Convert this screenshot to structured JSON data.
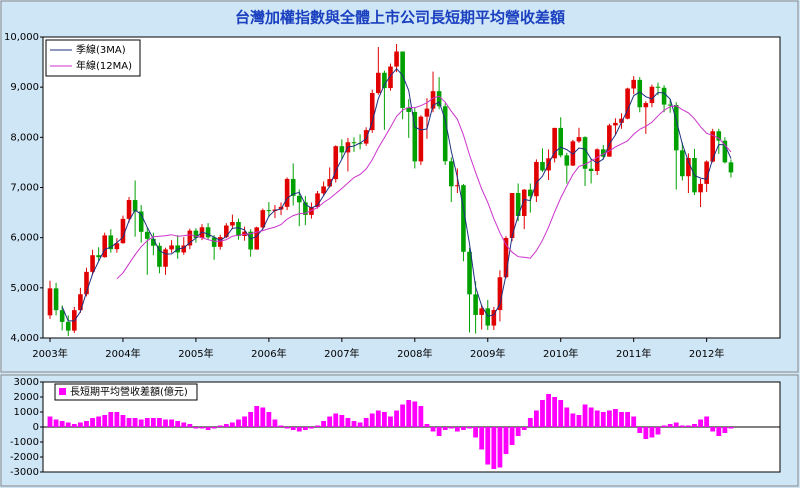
{
  "chart_data": [
    {
      "type": "candlestick",
      "title": "台灣加權指數與全體上市公司長短期平均營收差額",
      "up_color": "#e00000",
      "down_color": "#00a000",
      "categories": [
        "2003年",
        null,
        null,
        null,
        null,
        null,
        null,
        null,
        null,
        null,
        null,
        null,
        "2004年",
        null,
        null,
        null,
        null,
        null,
        null,
        null,
        null,
        null,
        null,
        null,
        "2005年",
        null,
        null,
        null,
        null,
        null,
        null,
        null,
        null,
        null,
        null,
        null,
        "2006年",
        null,
        null,
        null,
        null,
        null,
        null,
        null,
        null,
        null,
        null,
        null,
        "2007年",
        null,
        null,
        null,
        null,
        null,
        null,
        null,
        null,
        null,
        null,
        null,
        "2008年",
        null,
        null,
        null,
        null,
        null,
        null,
        null,
        null,
        null,
        null,
        null,
        "2009年",
        null,
        null,
        null,
        null,
        null,
        null,
        null,
        null,
        null,
        null,
        null,
        "2010年",
        null,
        null,
        null,
        null,
        null,
        null,
        null,
        null,
        null,
        null,
        null,
        "2011年",
        null,
        null,
        null,
        null,
        null,
        null,
        null,
        null,
        null,
        null,
        null,
        "2012年",
        null,
        null,
        null,
        null
      ],
      "open": [
        4452,
        4990,
        4555,
        4321,
        4148,
        4555,
        4872,
        5318,
        5650,
        5611,
        6045,
        5771,
        5890,
        6375,
        6750,
        6522,
        6117,
        5977,
        5839,
        5420,
        5766,
        5845,
        5706,
        5844,
        6140,
        5994,
        6207,
        6006,
        5818,
        6012,
        6242,
        6312,
        6033,
        6119,
        5764,
        6204,
        6548,
        6532,
        6561,
        6614,
        7171,
        6833,
        6704,
        6454,
        6611,
        6883,
        7021,
        7167,
        7823,
        7699,
        7902,
        7884,
        7875,
        8144,
        8883,
        9287,
        8982,
        9411,
        9711,
        8586,
        8506,
        7521,
        8412,
        8572,
        8920,
        8619,
        7523,
        7024,
        7046,
        5719,
        4870,
        4460,
        4591,
        4248,
        4557,
        5211,
        5993,
        6890,
        6432,
        6957,
        6826,
        7509,
        7340,
        7582,
        8188,
        7641,
        7437,
        7920,
        8004,
        7374,
        7329,
        7761,
        7616,
        8238,
        8288,
        8372,
        8973,
        9145,
        8600,
        8683,
        9008,
        8988,
        8653,
        8644,
        7741,
        7225,
        7588,
        6904,
        7072,
        7517,
        8121,
        7933,
        7501
      ],
      "high": [
        5140,
        5100,
        4650,
        4450,
        4620,
        5000,
        5400,
        5760,
        5810,
        6100,
        6170,
        5990,
        6440,
        6810,
        7140,
        6650,
        6200,
        6100,
        5900,
        5800,
        5950,
        6050,
        6010,
        6180,
        6190,
        6270,
        6290,
        6050,
        6060,
        6290,
        6460,
        6380,
        6220,
        6170,
        6220,
        6580,
        6710,
        6650,
        6700,
        7200,
        7480,
        6960,
        6830,
        6700,
        6930,
        7120,
        7400,
        7840,
        7960,
        7990,
        8000,
        8060,
        8200,
        8950,
        9800,
        9330,
        9470,
        9860,
        9710,
        8760,
        8590,
        8440,
        8780,
        9310,
        9200,
        8680,
        7600,
        7380,
        7070,
        5800,
        5130,
        4660,
        4760,
        4620,
        5350,
        6030,
        6890,
        7080,
        6970,
        7080,
        7560,
        7780,
        7760,
        8190,
        8400,
        7690,
        7950,
        8190,
        8020,
        7580,
        7780,
        7850,
        8270,
        8380,
        8480,
        8990,
        9220,
        9200,
        8720,
        9050,
        9090,
        9040,
        8760,
        8700,
        7900,
        7680,
        7770,
        7170,
        7540,
        8170,
        8170,
        8000,
        7560
      ],
      "low": [
        4380,
        4450,
        4150,
        4040,
        4100,
        4500,
        4830,
        5250,
        5540,
        5600,
        5700,
        5700,
        5880,
        6300,
        6020,
        5900,
        5260,
        5650,
        5290,
        5260,
        5700,
        5580,
        5660,
        5770,
        5900,
        5950,
        5960,
        5560,
        5760,
        5990,
        6170,
        5960,
        5940,
        5620,
        5760,
        6170,
        6410,
        6390,
        6450,
        6550,
        6640,
        6230,
        6250,
        6380,
        6580,
        6830,
        7000,
        7100,
        7560,
        7320,
        7710,
        7760,
        7830,
        8090,
        8850,
        8150,
        8930,
        9300,
        8360,
        7990,
        7380,
        7450,
        7970,
        8500,
        8560,
        7450,
        6710,
        6890,
        5530,
        4110,
        4090,
        4170,
        4160,
        4160,
        4330,
        5190,
        5930,
        6330,
        6170,
        6500,
        6710,
        7310,
        7150,
        7500,
        7600,
        7080,
        7430,
        7890,
        7030,
        7080,
        7250,
        7560,
        7610,
        8050,
        8170,
        8360,
        8860,
        8500,
        8070,
        8600,
        8840,
        8500,
        8490,
        6960,
        7140,
        6890,
        6850,
        6610,
        6910,
        7500,
        7670,
        7480,
        7200
      ],
      "close": [
        4990,
        4555,
        4321,
        4148,
        4555,
        4872,
        5318,
        5650,
        5611,
        6045,
        5771,
        5890,
        6375,
        6750,
        6522,
        6117,
        5977,
        5839,
        5420,
        5766,
        5845,
        5706,
        5844,
        6140,
        5994,
        6207,
        6006,
        5818,
        6012,
        6242,
        6312,
        6033,
        6119,
        5764,
        6204,
        6548,
        6532,
        6561,
        6614,
        7171,
        6833,
        6704,
        6454,
        6611,
        6883,
        7021,
        7167,
        7823,
        7699,
        7902,
        7884,
        7875,
        8144,
        8883,
        9287,
        8982,
        9411,
        9711,
        8586,
        8506,
        7521,
        8412,
        8572,
        8920,
        8619,
        7523,
        7024,
        7046,
        5719,
        4870,
        4460,
        4591,
        4248,
        4557,
        5211,
        5993,
        6890,
        6432,
        6957,
        6826,
        7509,
        7340,
        7582,
        8188,
        7641,
        7437,
        7920,
        8004,
        7374,
        7329,
        7761,
        7616,
        8238,
        8288,
        8372,
        8973,
        9145,
        8600,
        8683,
        9008,
        8988,
        8653,
        8644,
        7741,
        7225,
        7588,
        6904,
        7072,
        7517,
        8121,
        7933,
        7501,
        7301
      ],
      "series": [
        {
          "name": "季線(3MA)",
          "color": "#1f2f80",
          "values": [
            null,
            null,
            4622,
            4341,
            4341,
            4525,
            4915,
            5280,
            5526,
            5769,
            5809,
            5902,
            6012,
            6338,
            6549,
            6463,
            6205,
            5978,
            5745,
            5675,
            5677,
            5772,
            5798,
            5897,
            5993,
            6114,
            6069,
            6010,
            5945,
            6024,
            6189,
            6196,
            6155,
            5972,
            6029,
            6172,
            6428,
            6547,
            6569,
            6782,
            6873,
            6903,
            6664,
            6590,
            6649,
            6838,
            7024,
            7337,
            7563,
            7808,
            7828,
            7887,
            7968,
            8301,
            8771,
            9051,
            9227,
            9368,
            9236,
            8934,
            8204,
            8146,
            8168,
            8635,
            8704,
            8354,
            7722,
            7198,
            6596,
            5878,
            5016,
            4640,
            4433,
            4465,
            4672,
            5254,
            6031,
            6438,
            6760,
            6738,
            7097,
            7225,
            7477,
            7703,
            7804,
            7755,
            7666,
            7787,
            7766,
            7569,
            7488,
            7569,
            7872,
            8047,
            8299,
            8544,
            8830,
            8906,
            8809,
            8764,
            8893,
            8883,
            8762,
            8346,
            7870,
            7518,
            7239,
            7188,
            7164,
            7570,
            7857,
            7852,
            7578
          ]
        },
        {
          "name": "年線(12MA)",
          "color": "#cc33cc",
          "values": [
            null,
            null,
            null,
            null,
            null,
            null,
            null,
            null,
            null,
            null,
            null,
            5180,
            5300,
            5480,
            5660,
            5820,
            5940,
            6020,
            6030,
            6040,
            6060,
            6030,
            6040,
            6060,
            6030,
            6000,
            5960,
            5930,
            5930,
            5960,
            6030,
            6050,
            6070,
            6080,
            6110,
            6140,
            6180,
            6210,
            6260,
            6370,
            6440,
            6480,
            6490,
            6540,
            6600,
            6700,
            6780,
            6880,
            6980,
            7090,
            7200,
            7260,
            7370,
            7550,
            7790,
            7990,
            8200,
            8420,
            8540,
            8600,
            8590,
            8630,
            8690,
            8780,
            8820,
            8700,
            8520,
            8360,
            8050,
            7650,
            7300,
            6970,
            6700,
            6380,
            6100,
            5860,
            5710,
            5620,
            5610,
            5590,
            5740,
            5950,
            6210,
            6510,
            6790,
            7030,
            7260,
            7420,
            7460,
            7530,
            7600,
            7670,
            7730,
            7810,
            7870,
            7930,
            8060,
            8160,
            8220,
            8300,
            8430,
            8540,
            8610,
            8630,
            8550,
            8490,
            8370,
            8210,
            8080,
            8040,
            7980,
            7850,
            7710
          ]
        }
      ],
      "ylim": [
        4000,
        10000
      ],
      "yticks": [
        {
          "value": 4000,
          "label": "4,000"
        },
        {
          "value": 5000,
          "label": "5,000"
        },
        {
          "value": 6000,
          "label": "6,000"
        },
        {
          "value": 7000,
          "label": "7,000"
        },
        {
          "value": 8000,
          "label": "8,000"
        },
        {
          "value": 9000,
          "label": "9,000"
        },
        {
          "value": 10000,
          "label": "10,000"
        }
      ],
      "legend": "upper-left"
    },
    {
      "type": "bar",
      "series": [
        {
          "name": "長短期平均營收差額(億元)",
          "color": "#ff00ff",
          "values": [
            700,
            500,
            400,
            300,
            200,
            300,
            400,
            600,
            700,
            800,
            1000,
            1000,
            800,
            600,
            600,
            500,
            600,
            600,
            600,
            500,
            500,
            400,
            300,
            200,
            -100,
            -100,
            -200,
            -100,
            100,
            200,
            300,
            500,
            700,
            1000,
            1400,
            1300,
            1000,
            500,
            100,
            -100,
            -200,
            -300,
            -200,
            -100,
            100,
            400,
            700,
            900,
            800,
            600,
            400,
            300,
            600,
            900,
            1100,
            1000,
            700,
            1100,
            1500,
            1800,
            1700,
            1400,
            200,
            -300,
            -600,
            -200,
            -100,
            -300,
            -200,
            -100,
            -700,
            -1500,
            -2500,
            -2800,
            -2700,
            -1800,
            -1200,
            -600,
            -200,
            600,
            1100,
            1800,
            2200,
            2000,
            1800,
            1300,
            900,
            800,
            1500,
            1300,
            1100,
            1000,
            1100,
            1200,
            1000,
            1000,
            700,
            -400,
            -800,
            -700,
            -500,
            100,
            200,
            300,
            100,
            100,
            200,
            500,
            700,
            -300,
            -600,
            -400,
            -100
          ]
        }
      ],
      "ylim": [
        -3000,
        3000
      ],
      "yticks": [
        -3000,
        -2000,
        -1000,
        0,
        1000,
        2000,
        3000
      ],
      "legend": "upper-left"
    }
  ]
}
